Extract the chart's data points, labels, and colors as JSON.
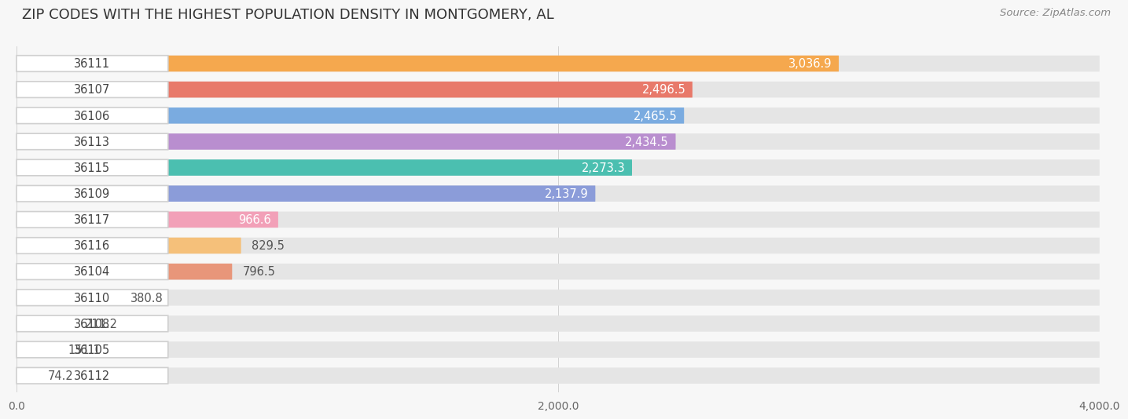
{
  "title": "ZIP CODES WITH THE HIGHEST POPULATION DENSITY IN MONTGOMERY, AL",
  "source": "Source: ZipAtlas.com",
  "background_color": "#f7f7f7",
  "bar_bg_color": "#e5e5e5",
  "categories": [
    "36111",
    "36107",
    "36106",
    "36113",
    "36115",
    "36109",
    "36117",
    "36116",
    "36104",
    "36110",
    "36108",
    "36105",
    "36112"
  ],
  "values": [
    3036.9,
    2496.5,
    2465.5,
    2434.5,
    2273.3,
    2137.9,
    966.6,
    829.5,
    796.5,
    380.8,
    211.2,
    151.1,
    74.2
  ],
  "bar_colors": [
    "#f5a84e",
    "#e8796a",
    "#7aabe0",
    "#b98ecf",
    "#4bbfb0",
    "#8b9cd9",
    "#f2a0b8",
    "#f5c07a",
    "#e8967a",
    "#90b8e0",
    "#c4a8d8",
    "#6ec9b8",
    "#b8bce8"
  ],
  "xlim": [
    0,
    4000
  ],
  "xticks": [
    0.0,
    2000.0,
    4000.0
  ],
  "title_fontsize": 13,
  "label_fontsize": 10.5,
  "value_fontsize": 10.5,
  "source_fontsize": 9.5
}
